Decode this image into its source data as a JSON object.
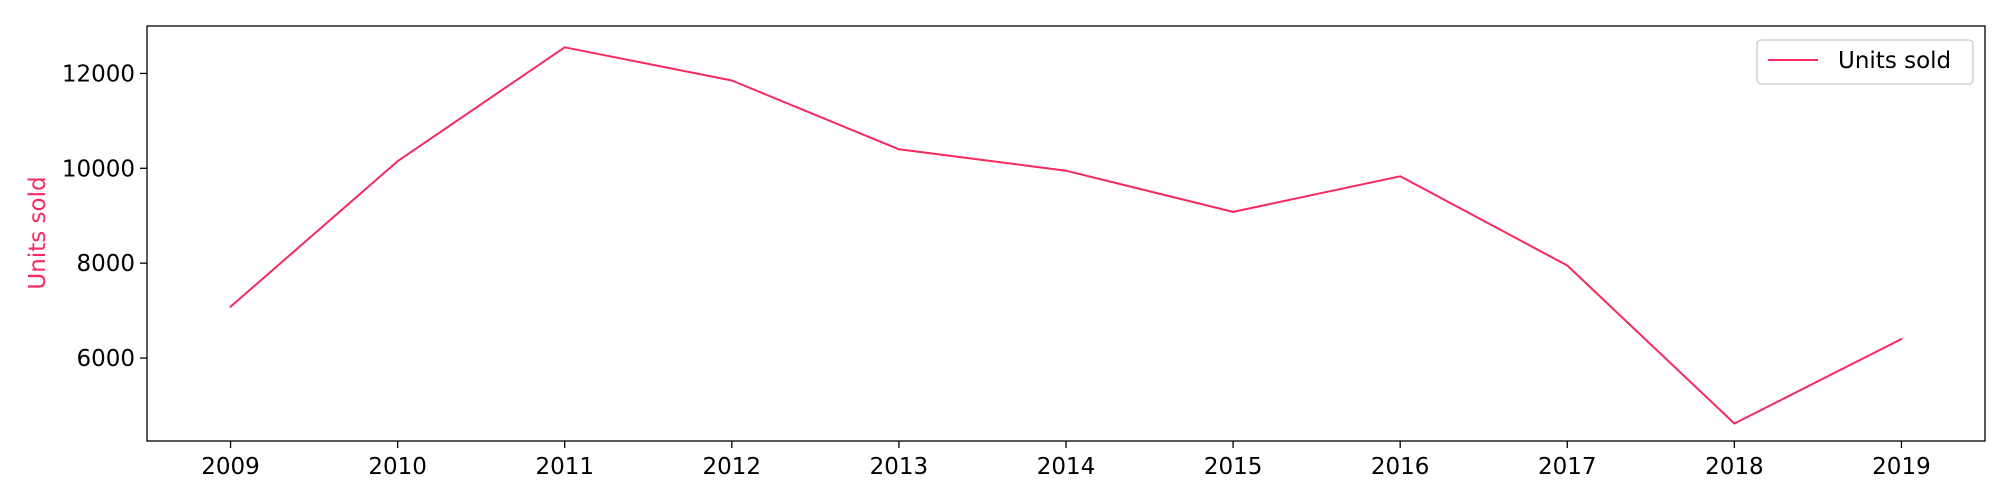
{
  "chart_data": {
    "type": "line",
    "title": "",
    "xlabel": "",
    "ylabel": "Units sold",
    "x": [
      2009,
      2010,
      2011,
      2012,
      2013,
      2014,
      2015,
      2016,
      2017,
      2018,
      2019
    ],
    "x_ticks": [
      "2009",
      "2010",
      "2011",
      "2012",
      "2013",
      "2014",
      "2015",
      "2016",
      "2017",
      "2018",
      "2019"
    ],
    "y_ticks": [
      6000,
      8000,
      10000,
      12000
    ],
    "y_tick_labels": [
      "6000",
      "8000",
      "10000",
      "12000"
    ],
    "ylim": [
      4250,
      13000
    ],
    "xlim": [
      2008.5,
      2019.5
    ],
    "grid": false,
    "legend_position": "top-right",
    "series": [
      {
        "name": "Units sold",
        "color": "#f7295e",
        "values": [
          7080,
          10150,
          12550,
          11850,
          10400,
          9950,
          9080,
          9830,
          7950,
          4620,
          6400
        ]
      }
    ]
  }
}
